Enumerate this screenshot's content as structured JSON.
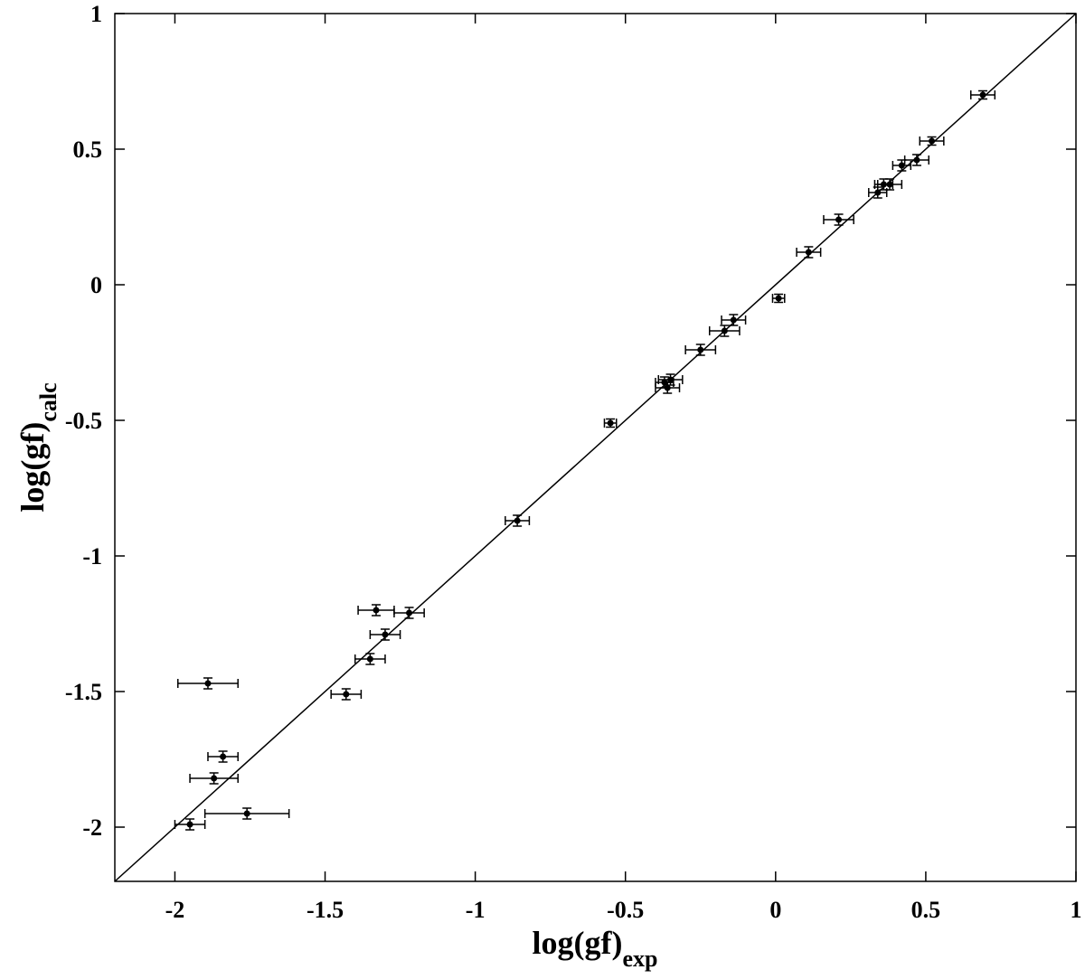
{
  "chart_data": {
    "type": "scatter",
    "xlabel": "log(gf)",
    "xlabel_sub": "exp",
    "ylabel": "log(gf)",
    "ylabel_sub": "calc",
    "xlim": [
      -2.2,
      1
    ],
    "ylim": [
      -2.2,
      1
    ],
    "xticks": [
      -2,
      -1.5,
      -1,
      -0.5,
      0,
      0.5,
      1
    ],
    "yticks": [
      -2,
      -1.5,
      -1,
      -0.5,
      0,
      0.5,
      1
    ],
    "color": "#000000",
    "series": [
      {
        "x": [
          0.69,
          0.52,
          0.47,
          0.42,
          0.38,
          0.36,
          0.34,
          0.21,
          0.11,
          0.01,
          -0.14,
          -0.17,
          -0.25,
          -0.35,
          -0.36,
          -0.37,
          -0.55,
          -0.86,
          -1.33,
          -1.22,
          -1.3,
          -1.35,
          -1.43,
          -1.89,
          -1.84,
          -1.87,
          -1.76,
          -1.95
        ],
        "y": [
          0.7,
          0.53,
          0.46,
          0.44,
          0.37,
          0.37,
          0.34,
          0.24,
          0.12,
          -0.05,
          -0.13,
          -0.17,
          -0.24,
          -0.35,
          -0.38,
          -0.36,
          -0.51,
          -0.87,
          -1.2,
          -1.21,
          -1.29,
          -1.38,
          -1.51,
          -1.47,
          -1.74,
          -1.82,
          -1.95,
          -1.99
        ],
        "xerr": [
          0.04,
          0.04,
          0.04,
          0.03,
          0.04,
          0.03,
          0.03,
          0.05,
          0.04,
          0.02,
          0.04,
          0.05,
          0.05,
          0.04,
          0.04,
          0.03,
          0.02,
          0.04,
          0.06,
          0.05,
          0.05,
          0.05,
          0.05,
          0.1,
          0.05,
          0.08,
          0.14,
          0.05
        ],
        "yerr": [
          0.015,
          0.015,
          0.02,
          0.02,
          0.02,
          0.02,
          0.02,
          0.02,
          0.02,
          0.015,
          0.02,
          0.02,
          0.02,
          0.02,
          0.02,
          0.02,
          0.015,
          0.02,
          0.02,
          0.02,
          0.02,
          0.02,
          0.02,
          0.02,
          0.02,
          0.02,
          0.02,
          0.02
        ]
      }
    ]
  }
}
